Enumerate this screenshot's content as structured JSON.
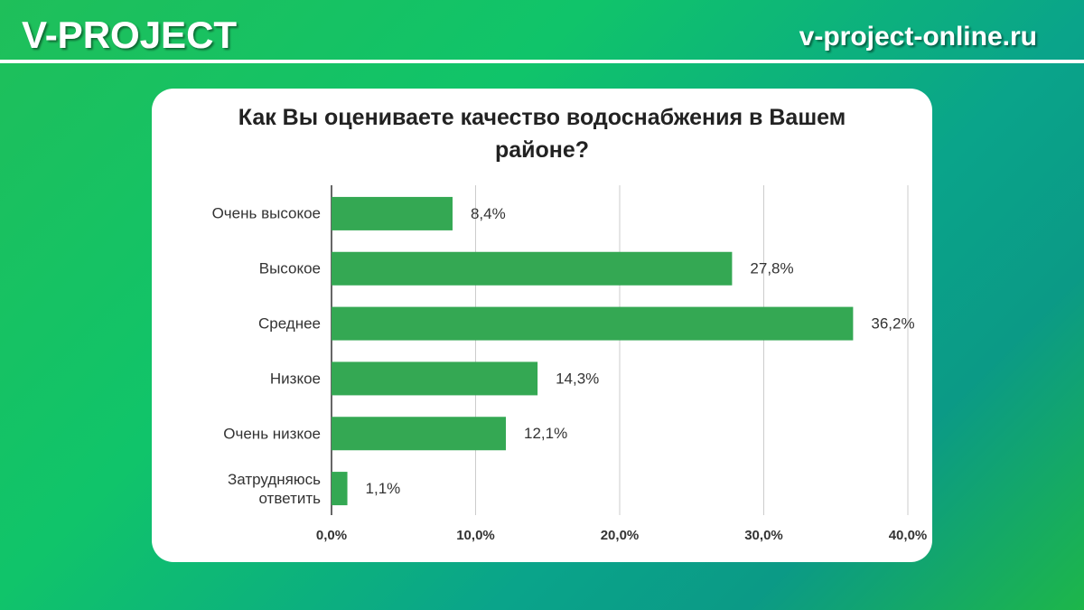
{
  "header": {
    "brand": "V-PROJECT",
    "site": "v-project-online.ru"
  },
  "chart_data": {
    "type": "bar",
    "orientation": "horizontal",
    "title": "Как Вы оцениваете качество водоснабжения в Вашем районе?",
    "categories": [
      "Очень высокое",
      "Высокое",
      "Среднее",
      "Низкое",
      "Очень низкое",
      "Затрудняюсь ответить"
    ],
    "values": [
      8.4,
      27.8,
      36.2,
      14.3,
      12.1,
      1.1
    ],
    "value_labels": [
      "8,4%",
      "27,8%",
      "36,2%",
      "14,3%",
      "12,1%",
      "1,1%"
    ],
    "color": "#34a853",
    "xlim": [
      0,
      40
    ],
    "xticks": [
      {
        "value": 0,
        "label": "0,0%"
      },
      {
        "value": 10,
        "label": "10,0%"
      },
      {
        "value": 20,
        "label": "20,0%"
      },
      {
        "value": 30,
        "label": "30,0%"
      },
      {
        "value": 40,
        "label": "40,0%"
      }
    ],
    "grid": true
  }
}
